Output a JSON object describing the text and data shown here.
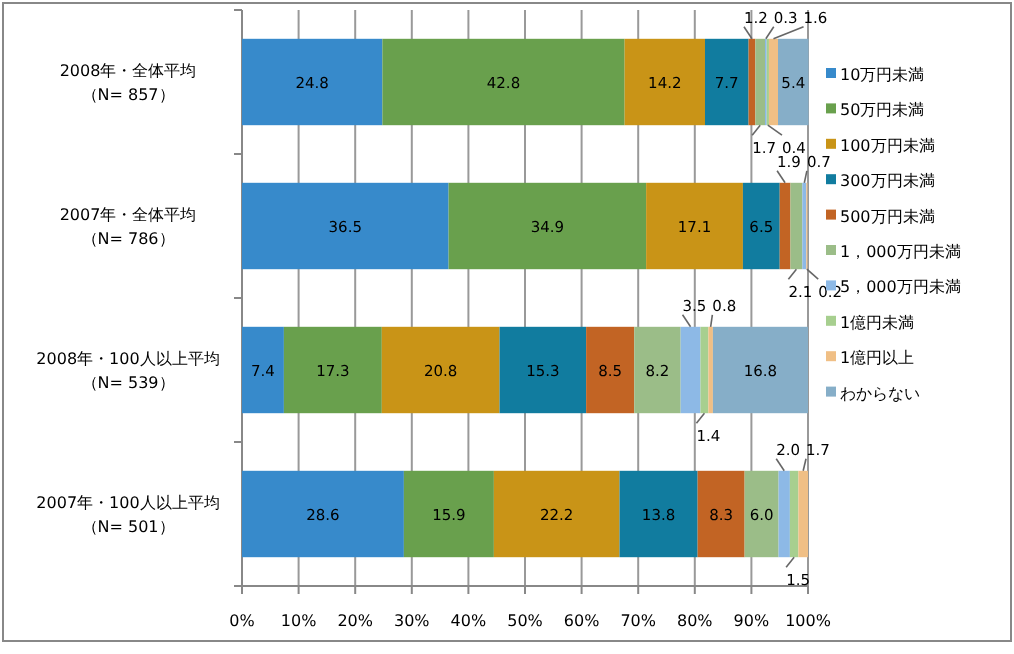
{
  "chart_data": {
    "type": "bar",
    "orientation": "horizontal",
    "stacked": true,
    "categories": [
      "2008年・全体平均（N= 857）",
      "2007年・全体平均（N= 786）",
      "2008年・100人以上平均（N= 539）",
      "2007年・100人以上平均（N= 501）"
    ],
    "series": [
      {
        "name": "10万円未満",
        "color": "#378acb",
        "values": [
          24.8,
          36.5,
          7.4,
          28.6
        ],
        "value_labels": [
          "24.8",
          "36.5",
          "7.4",
          "28.6"
        ]
      },
      {
        "name": "50万円未満",
        "color": "#69a04d",
        "values": [
          42.8,
          34.9,
          17.3,
          15.9
        ],
        "value_labels": [
          "42.8",
          "34.9",
          "17.3",
          "15.9"
        ]
      },
      {
        "name": "100万円未満",
        "color": "#c99417",
        "values": [
          14.2,
          17.1,
          20.8,
          22.2
        ],
        "value_labels": [
          "14.2",
          "17.1",
          "20.8",
          "22.2"
        ]
      },
      {
        "name": "300万円未満",
        "color": "#117c9f",
        "values": [
          7.7,
          6.5,
          15.3,
          13.8
        ],
        "value_labels": [
          "7.7",
          "6.5",
          "15.3",
          "13.8"
        ]
      },
      {
        "name": "500万円未満",
        "color": "#c26424",
        "values": [
          1.2,
          1.9,
          8.5,
          8.3
        ],
        "value_labels": [
          "1.2",
          "1.9",
          "8.5",
          "8.3"
        ]
      },
      {
        "name": "1，000万円未満",
        "color": "#9bbd88",
        "values": [
          1.7,
          2.1,
          8.2,
          6.0
        ],
        "value_labels": [
          "1.7",
          "2.1",
          "8.2",
          "6.0"
        ]
      },
      {
        "name": "5，000万円未満",
        "color": "#8db9e6",
        "values": [
          0.3,
          0.7,
          3.5,
          2.0
        ],
        "value_labels": [
          "0.3",
          "0.7",
          "3.5",
          "2.0"
        ]
      },
      {
        "name": "1億円未満",
        "color": "#a7cf8f",
        "values": [
          0.4,
          null,
          1.4,
          1.5
        ],
        "value_labels": [
          "0.4",
          null,
          "1.4",
          "1.5"
        ]
      },
      {
        "name": "1億円以上",
        "color": "#f0bf85",
        "values": [
          1.6,
          0.2,
          0.8,
          1.7
        ],
        "value_labels": [
          "1.6",
          "0.2",
          "0.8",
          "1.7"
        ]
      },
      {
        "name": "わからない",
        "color": "#86aec8",
        "values": [
          5.4,
          null,
          16.8,
          null
        ],
        "value_labels": [
          "5.4",
          null,
          "16.8",
          null
        ]
      }
    ],
    "xlim": [
      0,
      100
    ],
    "xticks": [
      {
        "value": 0,
        "label": "0%"
      },
      {
        "value": 10,
        "label": "10%"
      },
      {
        "value": 20,
        "label": "20%"
      },
      {
        "value": 30,
        "label": "30%"
      },
      {
        "value": 40,
        "label": "40%"
      },
      {
        "value": 50,
        "label": "50%"
      },
      {
        "value": 60,
        "label": "60%"
      },
      {
        "value": 70,
        "label": "70%"
      },
      {
        "value": 80,
        "label": "80%"
      },
      {
        "value": 90,
        "label": "90%"
      },
      {
        "value": 100,
        "label": "100%"
      }
    ],
    "grid": "x",
    "legend": "right"
  }
}
